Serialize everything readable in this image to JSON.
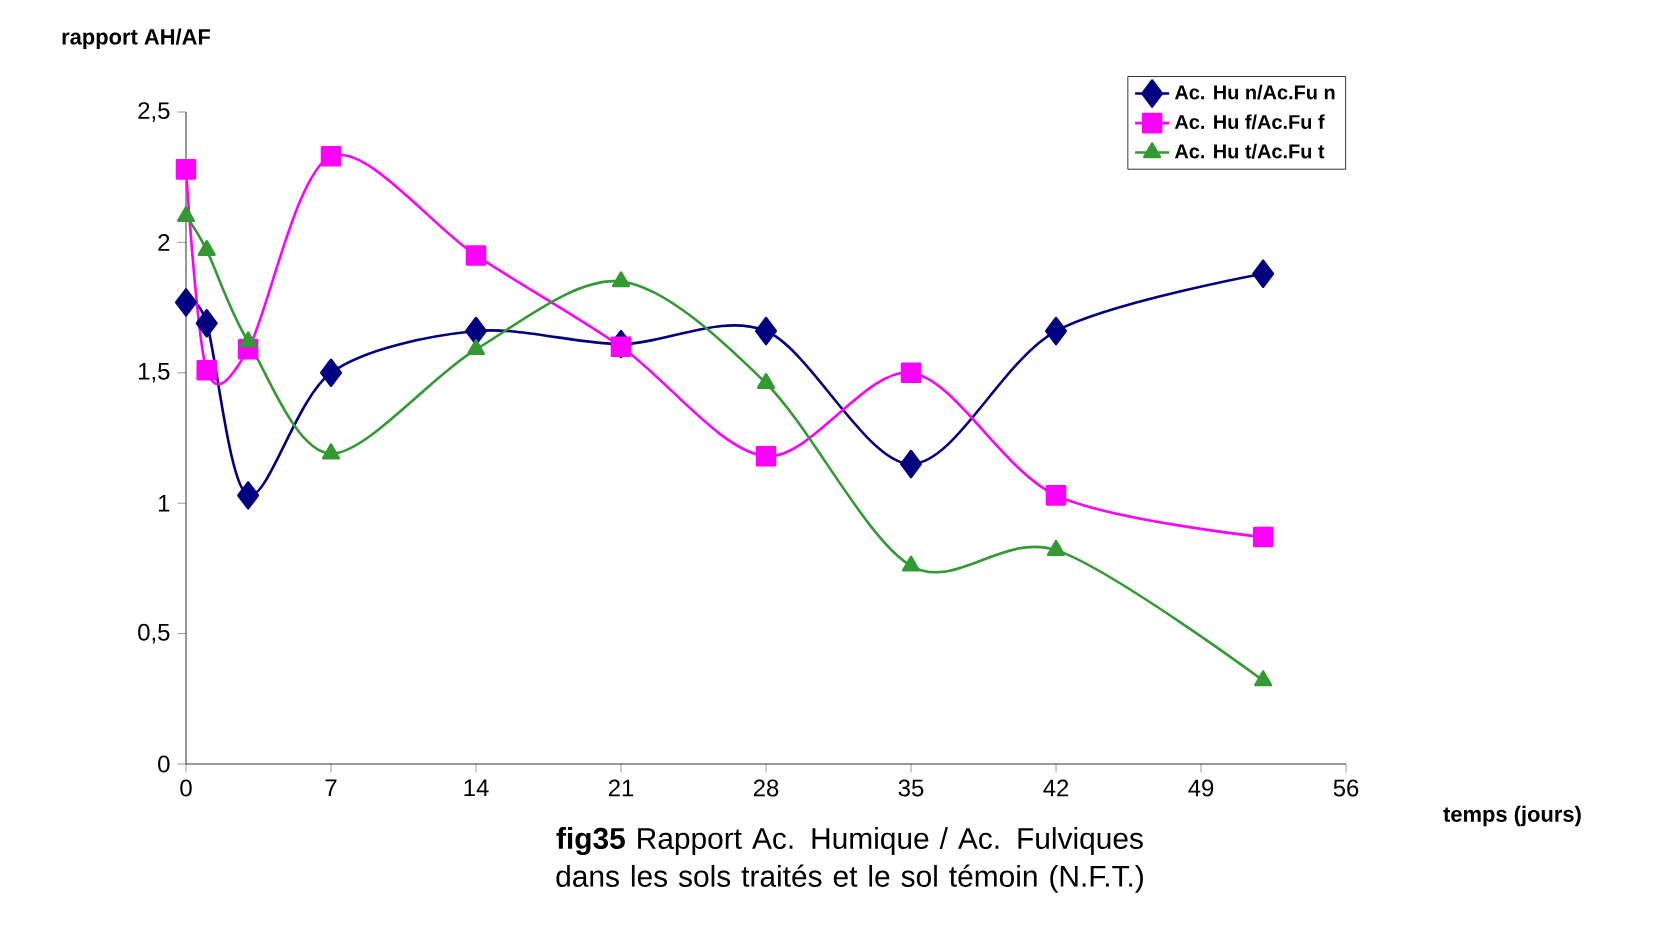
{
  "chart_data": {
    "type": "line",
    "title": "**fig35** Rapport Ac. Humique / Ac. Fulviques dans les sols traités et le sol témoin (N.F.T.)",
    "xlabel": "temps (jours)",
    "ylabel": "rapport AH/AF",
    "x": [
      0,
      1,
      3,
      7,
      14,
      21,
      28,
      35,
      42,
      52
    ],
    "series": [
      {
        "name": "Ac. Hu n/Ac.Fu n",
        "color": "#000080",
        "marker": "diamond",
        "values": [
          1.77,
          1.69,
          1.03,
          1.5,
          1.66,
          1.61,
          1.66,
          1.15,
          1.66,
          1.88
        ]
      },
      {
        "name": "Ac. Hu f/Ac.Fu f",
        "color": "#ff00ff",
        "marker": "square",
        "values": [
          2.28,
          1.51,
          1.59,
          2.33,
          1.95,
          1.6,
          1.18,
          1.5,
          1.03,
          0.87
        ]
      },
      {
        "name": "Ac. Hu t/Ac.Fu t",
        "color": "#339933",
        "marker": "triangle",
        "values": [
          2.1,
          1.97,
          1.62,
          1.19,
          1.59,
          1.85,
          1.46,
          0.76,
          0.82,
          0.32
        ]
      }
    ],
    "xlim": [
      0,
      56
    ],
    "xticks": [
      0,
      7,
      14,
      21,
      28,
      35,
      42,
      49,
      56
    ],
    "ylim": [
      0,
      2.5
    ],
    "yticks": [
      0,
      {
        "value": 0.5,
        "label": "0,5"
      },
      1,
      {
        "value": 1.5,
        "label": "1,5"
      },
      2,
      {
        "value": 2.5,
        "label": "2,5"
      }
    ],
    "grid": false,
    "legend": "top right",
    "line_style": "solid"
  }
}
